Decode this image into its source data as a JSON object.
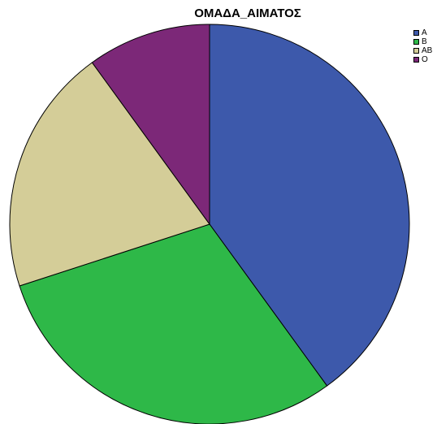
{
  "chart_data": {
    "type": "pie",
    "title": "ΟΜΑΔΑ_ΑΙΜΑΤΟΣ",
    "categories": [
      "A",
      "B",
      "AB",
      "O"
    ],
    "values": [
      40,
      30,
      20,
      10
    ],
    "colors": [
      "#3d59ab",
      "#2eb848",
      "#d4cd98",
      "#7c2878"
    ],
    "legend_position": "top-right"
  }
}
